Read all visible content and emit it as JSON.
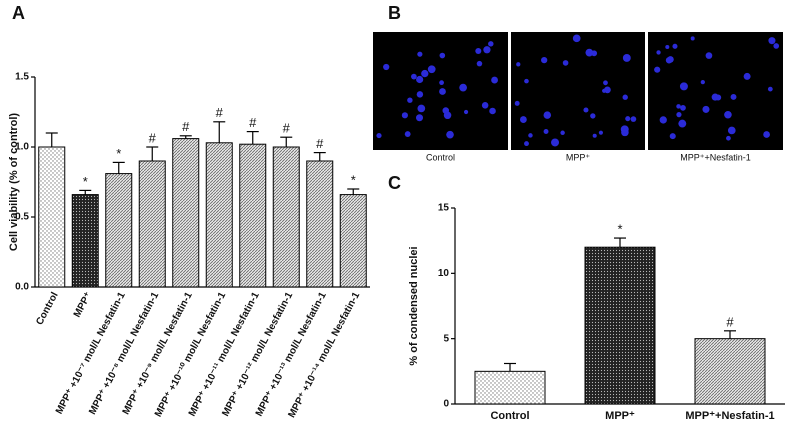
{
  "chart_data": [
    {
      "type": "bar",
      "panel": "A",
      "y_label": "Cell viability (% of control)",
      "categories": [
        "Control",
        "MPP⁺",
        "MPP⁺ +10⁻⁷ mol/L Nesfatin-1",
        "MPP⁺ +10⁻⁸ mol/L Nesfatin-1",
        "MPP⁺ +10⁻⁹ mol/L Nesfatin-1",
        "MPP⁺ +10⁻¹⁰ mol/L Nesfatin-1",
        "MPP⁺ +10⁻¹¹ mol/L Nesfatin-1",
        "MPP⁺ +10⁻¹² mol/L Nesfatin-1",
        "MPP⁺ +10⁻¹³ mol/L Nesfatin-1",
        "MPP⁺ +10⁻¹⁴ mol/L Nesfatin-1"
      ],
      "values": [
        1.0,
        0.66,
        0.81,
        0.9,
        1.06,
        1.03,
        1.02,
        1.0,
        0.9,
        0.66
      ],
      "errors": [
        0.1,
        0.03,
        0.08,
        0.1,
        0.02,
        0.15,
        0.09,
        0.07,
        0.06,
        0.04
      ],
      "annotations": [
        null,
        "*",
        "*",
        "#",
        "#",
        "#",
        "#",
        "#",
        "#",
        "*"
      ],
      "ylim": [
        0,
        1.5
      ],
      "yticks": [
        {
          "value": 0,
          "label": "0.0"
        },
        {
          "value": 0.5,
          "label": "0.5"
        },
        {
          "value": 1,
          "label": "1.0"
        },
        {
          "value": 1.5,
          "label": "1.5"
        }
      ]
    },
    {
      "type": "image",
      "panel": "B",
      "categories": [
        "Control",
        "MPP⁺",
        "MPP⁺+Nesfatin-1"
      ]
    },
    {
      "type": "bar",
      "panel": "C",
      "y_label": "% of condensed  nuclei",
      "categories": [
        "Control",
        "MPP⁺",
        "MPP⁺+Nesfatin-1"
      ],
      "values": [
        2.5,
        12,
        5
      ],
      "errors": [
        0.6,
        0.7,
        0.6
      ],
      "annotations": [
        null,
        "*",
        "#"
      ],
      "ylim": [
        0,
        15
      ],
      "yticks": [
        0,
        5,
        10,
        15
      ]
    }
  ]
}
